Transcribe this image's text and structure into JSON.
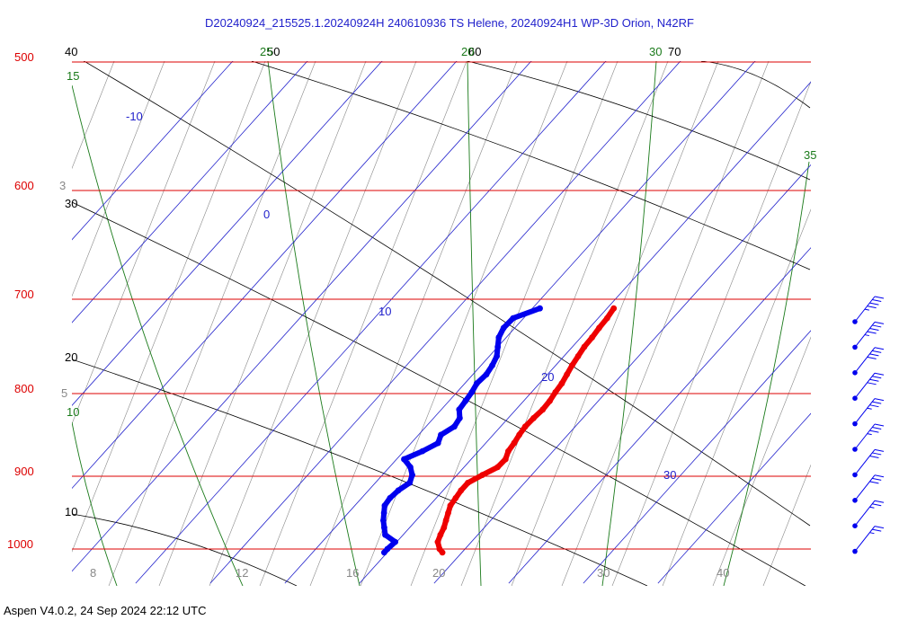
{
  "title": "D20240924_215525.1.20240924H 240610936 TS Helene, 20240924H1 WP-3D Orion, N42RF",
  "footer": "Aspen V4.0.2, 24 Sep 2024  22:12 UTC",
  "colors": {
    "isobar": "#dd0000",
    "temperature": "#ee0000",
    "dewpoint": "#0000ee",
    "isotherm": "#2222cc",
    "dry_adiabat": "#000000",
    "moist_adiabat": "#1a7a1a",
    "mixing_ratio": "#888888",
    "wind_barb": "#0000ee"
  },
  "chart_data": {
    "type": "skew-t",
    "pressure_labels": [
      "500",
      "600",
      "700",
      "800",
      "900",
      "1000"
    ],
    "isotherm_labels": [
      "-10",
      "0",
      "10",
      "20",
      "30"
    ],
    "dry_adiabat_labels": [
      "40",
      "50",
      "60",
      "70",
      "30",
      "20",
      "10"
    ],
    "moist_adiabat_labels": [
      "15",
      "20",
      "25",
      "30",
      "35",
      "10"
    ],
    "mixing_ratio_labels": [
      "3",
      "5",
      "8",
      "12",
      "16",
      "20",
      "30",
      "40"
    ],
    "profile": [
      {
        "p": 710,
        "T": 20.9,
        "Td": 11.0
      },
      {
        "p": 720,
        "T": 21.2,
        "Td": 8.6
      },
      {
        "p": 730,
        "T": 21.3,
        "Td": 8.5
      },
      {
        "p": 740,
        "T": 21.5,
        "Td": 9.0
      },
      {
        "p": 750,
        "T": 21.6,
        "Td": 10.0
      },
      {
        "p": 760,
        "T": 21.9,
        "Td": 11.0
      },
      {
        "p": 770,
        "T": 22.2,
        "Td": 11.5
      },
      {
        "p": 780,
        "T": 22.6,
        "Td": 11.8
      },
      {
        "p": 790,
        "T": 23.0,
        "Td": 11.6
      },
      {
        "p": 800,
        "T": 23.2,
        "Td": 12.0
      },
      {
        "p": 810,
        "T": 23.5,
        "Td": 12.2
      },
      {
        "p": 820,
        "T": 23.6,
        "Td": 12.4
      },
      {
        "p": 830,
        "T": 23.4,
        "Td": 13.5
      },
      {
        "p": 840,
        "T": 23.3,
        "Td": 13.8
      },
      {
        "p": 850,
        "T": 23.5,
        "Td": 13.0
      },
      {
        "p": 860,
        "T": 23.8,
        "Td": 13.6
      },
      {
        "p": 870,
        "T": 24.0,
        "Td": 12.5
      },
      {
        "p": 880,
        "T": 24.6,
        "Td": 11.0
      },
      {
        "p": 890,
        "T": 24.5,
        "Td": 12.8
      },
      {
        "p": 900,
        "T": 23.4,
        "Td": 14.0
      },
      {
        "p": 910,
        "T": 22.4,
        "Td": 14.6
      },
      {
        "p": 920,
        "T": 22.4,
        "Td": 14.0
      },
      {
        "p": 930,
        "T": 22.6,
        "Td": 13.8
      },
      {
        "p": 940,
        "T": 22.8,
        "Td": 14.0
      },
      {
        "p": 950,
        "T": 23.4,
        "Td": 14.8
      },
      {
        "p": 960,
        "T": 24.0,
        "Td": 15.6
      },
      {
        "p": 970,
        "T": 24.6,
        "Td": 16.6
      },
      {
        "p": 980,
        "T": 25.0,
        "Td": 17.6
      },
      {
        "p": 990,
        "T": 25.5,
        "Td": 19.8
      },
      {
        "p": 1000,
        "T": 26.6,
        "Td": 19.6
      },
      {
        "p": 1005,
        "T": 27.4,
        "Td": 19.6
      }
    ],
    "wind_barbs": [
      {
        "speed_kt": 45
      },
      {
        "speed_kt": 45
      },
      {
        "speed_kt": 40
      },
      {
        "speed_kt": 40
      },
      {
        "speed_kt": 35
      },
      {
        "speed_kt": 35
      },
      {
        "speed_kt": 30
      },
      {
        "speed_kt": 30
      },
      {
        "speed_kt": 25
      },
      {
        "speed_kt": 25
      }
    ]
  }
}
